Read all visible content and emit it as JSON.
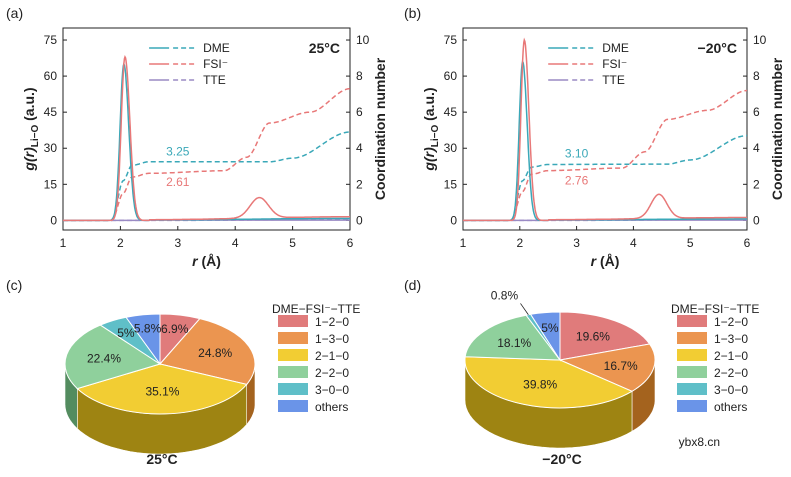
{
  "colors": {
    "DME": "#3aa8b8",
    "FSI": "#e87878",
    "TTE": "#9a8ac4",
    "pie": [
      "#e07b7b",
      "#eb9550",
      "#f2cd33",
      "#8fd09c",
      "#5fbfc8",
      "#6a94e8"
    ],
    "pie_side": [
      "#a24a4a",
      "#a4631e",
      "#9e8412",
      "#538c5f",
      "#2f7e86",
      "#3b62aa"
    ]
  },
  "watermark": "ybx8.cn",
  "chart_data": [
    {
      "type": "line",
      "panel": "(a)",
      "condition": "25°C",
      "xlabel_italic": "r",
      "xlabel_unit": "(Å)",
      "ylabel_left_base": "g(r)",
      "ylabel_left_sub": "Li−O",
      "ylabel_left_unit": "(a.u.)",
      "ylabel_right": "Coordination number",
      "xlim": [
        1,
        6
      ],
      "ylim_left": [
        -4,
        80
      ],
      "ylim_right": [
        -0.5333,
        10.6667
      ],
      "xticks": [
        "1",
        "2",
        "3",
        "4",
        "5",
        "6"
      ],
      "yticks_left": [
        "0",
        "15",
        "30",
        "45",
        "60",
        "75"
      ],
      "yticks_right": [
        "0",
        "2",
        "4",
        "6",
        "8",
        "10"
      ],
      "legend": [
        "DME",
        "FSI⁻",
        "TTE"
      ],
      "legend_position": "top-right",
      "annotations": [
        {
          "text": "3.25",
          "series": "DME",
          "x": 3.0,
          "y_right": 3.6
        },
        {
          "text": "2.61",
          "series": "FSI",
          "x": 3.0,
          "y_right": 1.9
        }
      ],
      "rdf": {
        "DME": {
          "peaks": [
            {
              "r": 2.06,
              "h": 65,
              "w": 0.065,
              "wr": 0.085
            }
          ],
          "tail": [
            [
              2.5,
              0.2
            ],
            [
              6.0,
              0.8
            ]
          ]
        },
        "FSI": {
          "peaks": [
            {
              "r": 2.08,
              "h": 68,
              "w": 0.065,
              "wr": 0.085
            },
            {
              "r": 4.42,
              "h": 8.5,
              "w": 0.16
            }
          ],
          "tail": [
            [
              2.5,
              0.3
            ],
            [
              6.0,
              1.5
            ]
          ]
        },
        "TTE": {
          "peaks": [],
          "tail": [
            [
              1.0,
              0.1
            ],
            [
              6.0,
              0.1
            ]
          ]
        }
      },
      "cn": {
        "DME": [
          [
            1.0,
            0
          ],
          [
            1.85,
            0
          ],
          [
            2.05,
            2.2
          ],
          [
            2.2,
            3.05
          ],
          [
            2.5,
            3.25
          ],
          [
            4.6,
            3.25
          ],
          [
            5.0,
            3.45
          ],
          [
            6.0,
            4.9
          ]
        ],
        "FSI": [
          [
            1.0,
            0
          ],
          [
            1.85,
            0
          ],
          [
            2.05,
            1.5
          ],
          [
            2.2,
            2.4
          ],
          [
            2.5,
            2.61
          ],
          [
            3.8,
            2.75
          ],
          [
            4.2,
            3.5
          ],
          [
            4.6,
            5.4
          ],
          [
            5.3,
            6.0
          ],
          [
            6.0,
            7.3
          ]
        ],
        "TTE": [
          [
            1.0,
            0
          ],
          [
            3.0,
            0
          ],
          [
            6.0,
            0.05
          ]
        ]
      }
    },
    {
      "type": "line",
      "panel": "(b)",
      "condition": "−20°C",
      "xlabel_italic": "r",
      "xlabel_unit": "(Å)",
      "ylabel_left_base": "g(r)",
      "ylabel_left_sub": "Li−O",
      "ylabel_left_unit": "(a.u.)",
      "ylabel_right": "Coordination number",
      "xlim": [
        1,
        6
      ],
      "ylim_left": [
        -4,
        80
      ],
      "ylim_right": [
        -0.5333,
        10.6667
      ],
      "xticks": [
        "1",
        "2",
        "3",
        "4",
        "5",
        "6"
      ],
      "yticks_left": [
        "0",
        "15",
        "30",
        "45",
        "60",
        "75"
      ],
      "yticks_right": [
        "0",
        "2",
        "4",
        "6",
        "8",
        "10"
      ],
      "legend": [
        "DME",
        "FSI⁻",
        "TTE"
      ],
      "legend_position": "top-right",
      "annotations": [
        {
          "text": "3.10",
          "series": "DME",
          "x": 3.0,
          "y_right": 3.5
        },
        {
          "text": "2.76",
          "series": "FSI",
          "x": 3.0,
          "y_right": 2.0
        }
      ],
      "rdf": {
        "DME": {
          "peaks": [
            {
              "r": 2.05,
              "h": 66,
              "w": 0.06,
              "wr": 0.08
            }
          ],
          "tail": [
            [
              2.5,
              0.2
            ],
            [
              6.0,
              0.6
            ]
          ]
        },
        "FSI": {
          "peaks": [
            {
              "r": 2.08,
              "h": 75,
              "w": 0.06,
              "wr": 0.08
            },
            {
              "r": 4.45,
              "h": 10,
              "w": 0.14
            }
          ],
          "tail": [
            [
              2.5,
              0.3
            ],
            [
              6.0,
              1.2
            ]
          ]
        },
        "TTE": {
          "peaks": [],
          "tail": [
            [
              1.0,
              0.1
            ],
            [
              6.0,
              0.1
            ]
          ]
        }
      },
      "cn": {
        "DME": [
          [
            1.0,
            0
          ],
          [
            1.85,
            0
          ],
          [
            2.05,
            2.2
          ],
          [
            2.2,
            2.95
          ],
          [
            2.5,
            3.1
          ],
          [
            4.6,
            3.12
          ],
          [
            5.0,
            3.35
          ],
          [
            6.0,
            4.7
          ]
        ],
        "FSI": [
          [
            1.0,
            0
          ],
          [
            1.85,
            0
          ],
          [
            2.05,
            1.6
          ],
          [
            2.2,
            2.55
          ],
          [
            2.5,
            2.76
          ],
          [
            3.8,
            2.9
          ],
          [
            4.2,
            3.8
          ],
          [
            4.6,
            5.6
          ],
          [
            5.3,
            6.1
          ],
          [
            6.0,
            7.2
          ]
        ],
        "TTE": [
          [
            1.0,
            0
          ],
          [
            3.0,
            0
          ],
          [
            6.0,
            0.05
          ]
        ]
      }
    },
    {
      "type": "pie",
      "panel": "(c)",
      "title": "25°C",
      "legend_title": "DME−FSI⁻−TTE",
      "legend_position": "right",
      "labels": [
        "1−2−0",
        "1−3−0",
        "2−1−0",
        "2−2−0",
        "3−0−0",
        "others"
      ],
      "values": [
        6.9,
        24.8,
        35.1,
        22.4,
        5.0,
        5.8
      ],
      "value_labels": [
        "6.9%",
        "24.8%",
        "35.1%",
        "22.4%",
        "5%",
        "5.8%"
      ]
    },
    {
      "type": "pie",
      "panel": "(d)",
      "title": "−20°C",
      "legend_title": "DME−FSI⁻−TTE",
      "legend_position": "right",
      "labels": [
        "1−2−0",
        "1−3−0",
        "2−1−0",
        "2−2−0",
        "3−0−0",
        "others"
      ],
      "values": [
        19.6,
        16.7,
        39.8,
        18.1,
        0.8,
        5.0
      ],
      "value_labels": [
        "19.6%",
        "16.7%",
        "39.8%",
        "18.1%",
        "0.8%",
        "5%"
      ]
    }
  ]
}
